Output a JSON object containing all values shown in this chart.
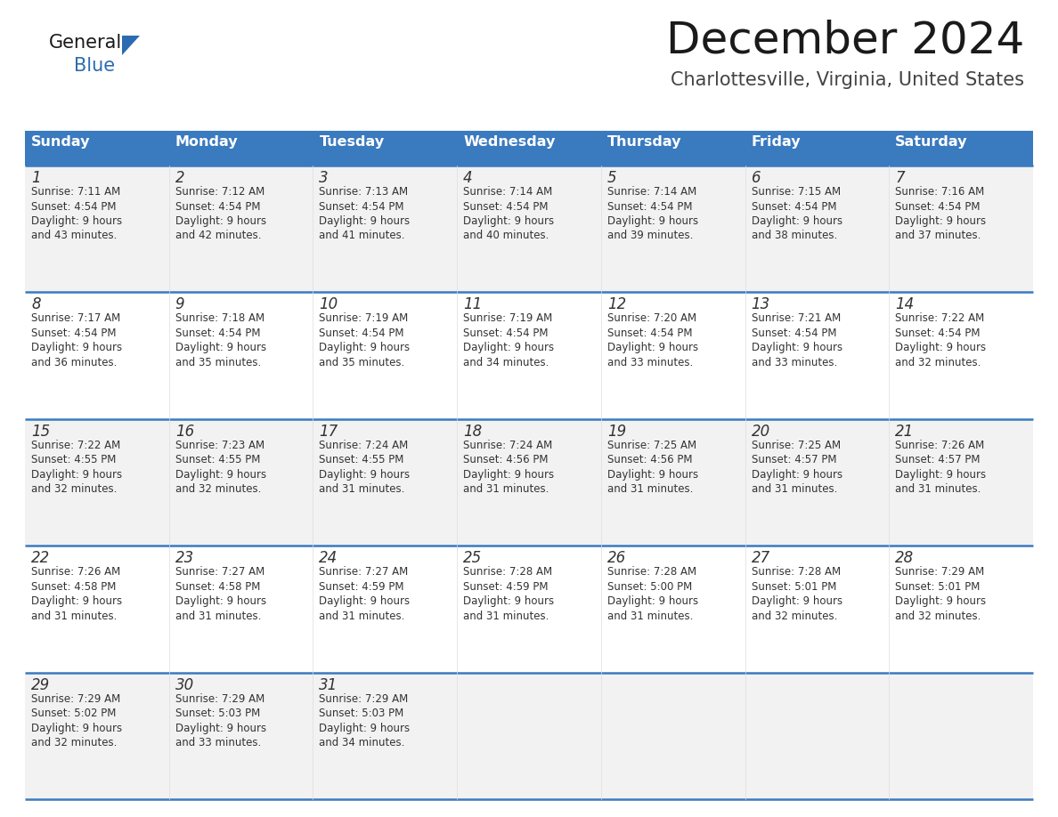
{
  "title": "December 2024",
  "subtitle": "Charlottesville, Virginia, United States",
  "header_bg": "#3a7abf",
  "header_text": "#ffffff",
  "row_bg_odd": "#f2f2f2",
  "row_bg_even": "#ffffff",
  "cell_text": "#333333",
  "border_color": "#3a7abf",
  "days_of_week": [
    "Sunday",
    "Monday",
    "Tuesday",
    "Wednesday",
    "Thursday",
    "Friday",
    "Saturday"
  ],
  "calendar": [
    [
      {
        "day": 1,
        "sunrise": "7:11 AM",
        "sunset": "4:54 PM",
        "daylight": "9 hours and 43 minutes."
      },
      {
        "day": 2,
        "sunrise": "7:12 AM",
        "sunset": "4:54 PM",
        "daylight": "9 hours and 42 minutes."
      },
      {
        "day": 3,
        "sunrise": "7:13 AM",
        "sunset": "4:54 PM",
        "daylight": "9 hours and 41 minutes."
      },
      {
        "day": 4,
        "sunrise": "7:14 AM",
        "sunset": "4:54 PM",
        "daylight": "9 hours and 40 minutes."
      },
      {
        "day": 5,
        "sunrise": "7:14 AM",
        "sunset": "4:54 PM",
        "daylight": "9 hours and 39 minutes."
      },
      {
        "day": 6,
        "sunrise": "7:15 AM",
        "sunset": "4:54 PM",
        "daylight": "9 hours and 38 minutes."
      },
      {
        "day": 7,
        "sunrise": "7:16 AM",
        "sunset": "4:54 PM",
        "daylight": "9 hours and 37 minutes."
      }
    ],
    [
      {
        "day": 8,
        "sunrise": "7:17 AM",
        "sunset": "4:54 PM",
        "daylight": "9 hours and 36 minutes."
      },
      {
        "day": 9,
        "sunrise": "7:18 AM",
        "sunset": "4:54 PM",
        "daylight": "9 hours and 35 minutes."
      },
      {
        "day": 10,
        "sunrise": "7:19 AM",
        "sunset": "4:54 PM",
        "daylight": "9 hours and 35 minutes."
      },
      {
        "day": 11,
        "sunrise": "7:19 AM",
        "sunset": "4:54 PM",
        "daylight": "9 hours and 34 minutes."
      },
      {
        "day": 12,
        "sunrise": "7:20 AM",
        "sunset": "4:54 PM",
        "daylight": "9 hours and 33 minutes."
      },
      {
        "day": 13,
        "sunrise": "7:21 AM",
        "sunset": "4:54 PM",
        "daylight": "9 hours and 33 minutes."
      },
      {
        "day": 14,
        "sunrise": "7:22 AM",
        "sunset": "4:54 PM",
        "daylight": "9 hours and 32 minutes."
      }
    ],
    [
      {
        "day": 15,
        "sunrise": "7:22 AM",
        "sunset": "4:55 PM",
        "daylight": "9 hours and 32 minutes."
      },
      {
        "day": 16,
        "sunrise": "7:23 AM",
        "sunset": "4:55 PM",
        "daylight": "9 hours and 32 minutes."
      },
      {
        "day": 17,
        "sunrise": "7:24 AM",
        "sunset": "4:55 PM",
        "daylight": "9 hours and 31 minutes."
      },
      {
        "day": 18,
        "sunrise": "7:24 AM",
        "sunset": "4:56 PM",
        "daylight": "9 hours and 31 minutes."
      },
      {
        "day": 19,
        "sunrise": "7:25 AM",
        "sunset": "4:56 PM",
        "daylight": "9 hours and 31 minutes."
      },
      {
        "day": 20,
        "sunrise": "7:25 AM",
        "sunset": "4:57 PM",
        "daylight": "9 hours and 31 minutes."
      },
      {
        "day": 21,
        "sunrise": "7:26 AM",
        "sunset": "4:57 PM",
        "daylight": "9 hours and 31 minutes."
      }
    ],
    [
      {
        "day": 22,
        "sunrise": "7:26 AM",
        "sunset": "4:58 PM",
        "daylight": "9 hours and 31 minutes."
      },
      {
        "day": 23,
        "sunrise": "7:27 AM",
        "sunset": "4:58 PM",
        "daylight": "9 hours and 31 minutes."
      },
      {
        "day": 24,
        "sunrise": "7:27 AM",
        "sunset": "4:59 PM",
        "daylight": "9 hours and 31 minutes."
      },
      {
        "day": 25,
        "sunrise": "7:28 AM",
        "sunset": "4:59 PM",
        "daylight": "9 hours and 31 minutes."
      },
      {
        "day": 26,
        "sunrise": "7:28 AM",
        "sunset": "5:00 PM",
        "daylight": "9 hours and 31 minutes."
      },
      {
        "day": 27,
        "sunrise": "7:28 AM",
        "sunset": "5:01 PM",
        "daylight": "9 hours and 32 minutes."
      },
      {
        "day": 28,
        "sunrise": "7:29 AM",
        "sunset": "5:01 PM",
        "daylight": "9 hours and 32 minutes."
      }
    ],
    [
      {
        "day": 29,
        "sunrise": "7:29 AM",
        "sunset": "5:02 PM",
        "daylight": "9 hours and 32 minutes."
      },
      {
        "day": 30,
        "sunrise": "7:29 AM",
        "sunset": "5:03 PM",
        "daylight": "9 hours and 33 minutes."
      },
      {
        "day": 31,
        "sunrise": "7:29 AM",
        "sunset": "5:03 PM",
        "daylight": "9 hours and 34 minutes."
      },
      null,
      null,
      null,
      null
    ]
  ]
}
